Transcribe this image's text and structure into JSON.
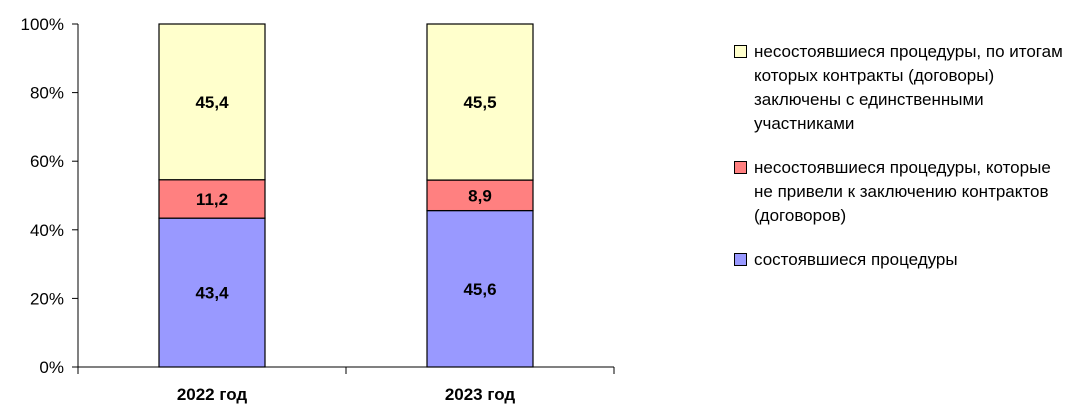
{
  "chart_data": {
    "type": "bar",
    "stacked": true,
    "percent_scale": true,
    "categories": [
      "2022 год",
      "2023 год"
    ],
    "series": [
      {
        "name": "состоявшиеся процедуры",
        "values": [
          43.4,
          45.6
        ],
        "labels": [
          "43,4",
          "45,6"
        ],
        "color": "#9999ff"
      },
      {
        "name": "несостоявшиеся процедуры, которые не привели к заключению контрактов (договоров)",
        "values": [
          11.2,
          8.9
        ],
        "labels": [
          "11,2",
          "8,9"
        ],
        "color": "#ff8080"
      },
      {
        "name": "несостоявшиеся процедуры, по итогам которых контракты (договоры) заключены с единственными участниками",
        "values": [
          45.4,
          45.5
        ],
        "labels": [
          "45,4",
          "45,5"
        ],
        "color": "#ffffcc"
      }
    ],
    "yticks": [
      "0%",
      "20%",
      "40%",
      "60%",
      "80%",
      "100%"
    ],
    "ylim": [
      0,
      100
    ],
    "legend_position": "right",
    "grid": false
  }
}
